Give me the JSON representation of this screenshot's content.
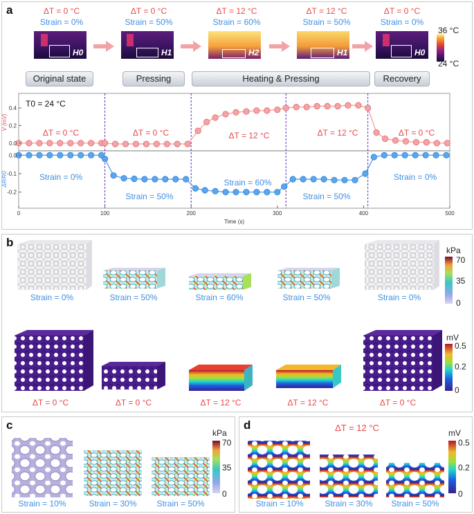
{
  "panel_labels": {
    "a": "a",
    "b": "b",
    "c": "c",
    "d": "d"
  },
  "panel_a": {
    "top_conditions": [
      {
        "dt": "ΔT = 0 °C",
        "strain": "Strain = 0%",
        "h_label": "H0"
      },
      {
        "dt": "ΔT = 0 °C",
        "strain": "Strain = 50%",
        "h_label": "H1"
      },
      {
        "dt": "ΔT = 12 °C",
        "strain": "Strain = 60%",
        "h_label": "H2"
      },
      {
        "dt": "ΔT = 12 °C",
        "strain": "Strain = 50%",
        "h_label": "H1"
      },
      {
        "dt": "ΔT = 0 °C",
        "strain": "Strain = 0%",
        "h_label": "H0"
      }
    ],
    "thermal_colorbar": {
      "max": "36 °C",
      "min": "24 °C"
    },
    "stages": [
      "Original state",
      "Pressing",
      "Heating & Pressing",
      "Recovery"
    ],
    "t0": "T0 = 24 °C",
    "plot_annotations_top": [
      "ΔT = 0 °C",
      "ΔT = 0 °C",
      "ΔT = 12 °C",
      "ΔT = 12 °C",
      "ΔT = 0 °C"
    ],
    "plot_annotations_bottom": [
      "Strain = 0%",
      "Strain = 50%",
      "Strain = 60%",
      "Strain = 50%",
      "Strain = 0%"
    ]
  },
  "chart_data": {
    "type": "line",
    "title": "",
    "xlabel": "Time (s)",
    "xlim": [
      0,
      500
    ],
    "xticks": [
      0,
      100,
      200,
      300,
      400,
      500
    ],
    "phase_boundaries": [
      100,
      200,
      310,
      405
    ],
    "series": [
      {
        "name": "V (mV)",
        "ylabel": "V (mV)",
        "color": "#f4a4a6",
        "ylim": [
          -0.08,
          0.55
        ],
        "yticks": [
          0.0,
          0.2,
          0.4
        ],
        "x": [
          0,
          12,
          24,
          36,
          48,
          60,
          72,
          84,
          96,
          100,
          112,
          124,
          136,
          148,
          160,
          172,
          184,
          196,
          208,
          218,
          228,
          240,
          252,
          264,
          276,
          288,
          300,
          310,
          322,
          334,
          346,
          358,
          370,
          382,
          394,
          405,
          415,
          425,
          437,
          449,
          461,
          473,
          485,
          497
        ],
        "values": [
          0.0,
          0.0,
          0.0,
          0.0,
          0.0,
          0.0,
          0.0,
          0.0,
          0.0,
          0.0,
          -0.01,
          -0.01,
          -0.01,
          -0.01,
          -0.01,
          -0.01,
          -0.01,
          -0.01,
          0.14,
          0.24,
          0.29,
          0.33,
          0.35,
          0.36,
          0.37,
          0.37,
          0.38,
          0.4,
          0.41,
          0.41,
          0.42,
          0.42,
          0.42,
          0.43,
          0.43,
          0.4,
          0.12,
          0.05,
          0.03,
          0.02,
          0.01,
          0.01,
          0.0,
          0.0
        ]
      },
      {
        "name": "ΔR/R0",
        "ylabel": "ΔR/R0",
        "color": "#5aa6ee",
        "ylim": [
          -0.28,
          0.02
        ],
        "yticks": [
          0.0,
          -0.1,
          -0.2
        ],
        "x": [
          0,
          12,
          24,
          36,
          48,
          60,
          72,
          84,
          96,
          100,
          110,
          122,
          134,
          146,
          158,
          170,
          182,
          194,
          205,
          216,
          228,
          240,
          252,
          264,
          276,
          288,
          300,
          308,
          318,
          330,
          342,
          354,
          366,
          378,
          390,
          402,
          412,
          424,
          436,
          448,
          460,
          472,
          484,
          496
        ],
        "values": [
          0.0,
          0.0,
          0.0,
          0.0,
          0.0,
          0.0,
          0.0,
          0.0,
          0.0,
          -0.02,
          -0.11,
          -0.125,
          -0.128,
          -0.13,
          -0.13,
          -0.13,
          -0.13,
          -0.13,
          -0.18,
          -0.19,
          -0.195,
          -0.2,
          -0.2,
          -0.2,
          -0.2,
          -0.2,
          -0.2,
          -0.17,
          -0.13,
          -0.13,
          -0.13,
          -0.13,
          -0.135,
          -0.135,
          -0.135,
          -0.1,
          -0.01,
          0.0,
          0.0,
          0.0,
          0.0,
          0.0,
          0.0,
          0.0
        ]
      }
    ]
  },
  "panel_b": {
    "strain_labels": [
      "Strain = 0%",
      "Strain = 50%",
      "Strain = 60%",
      "Strain = 50%",
      "Strain = 0%"
    ],
    "dt_labels": [
      "ΔT = 0 °C",
      "ΔT = 0 °C",
      "ΔT = 12 °C",
      "ΔT = 12 °C",
      "ΔT = 0 °C"
    ],
    "stress_colorbar": {
      "unit": "kPa",
      "ticks": [
        "70",
        "35",
        "0"
      ]
    },
    "voltage_colorbar": {
      "unit": "mV",
      "ticks": [
        "0.5",
        "0.2",
        "0"
      ]
    }
  },
  "panel_c": {
    "strain_labels": [
      "Strain = 10%",
      "Strain = 30%",
      "Strain = 50%"
    ],
    "colorbar": {
      "unit": "kPa",
      "ticks": [
        "70",
        "35",
        "0"
      ]
    }
  },
  "panel_d": {
    "title": "ΔT = 12 °C",
    "strain_labels": [
      "Strain = 10%",
      "Strain = 30%",
      "Strain = 50%"
    ],
    "colorbar": {
      "unit": "mV",
      "ticks": [
        "0.5",
        "0.2",
        "0"
      ]
    }
  },
  "colors": {
    "red": "#e8474a",
    "blue": "#3f8fe0",
    "grid_dash": "#5b2fb8"
  }
}
